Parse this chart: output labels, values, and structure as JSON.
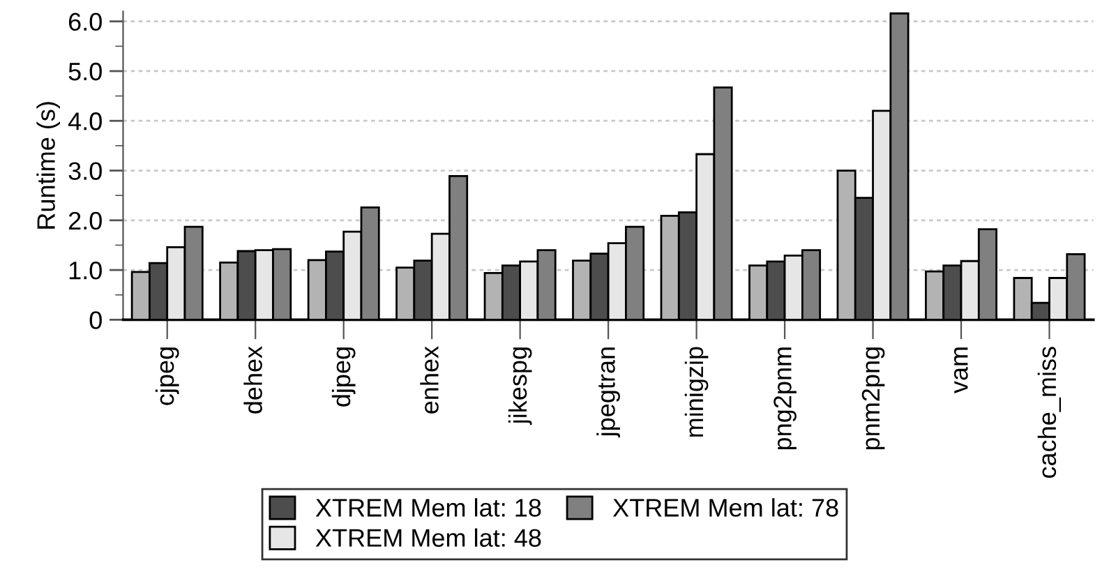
{
  "chart_data": {
    "type": "bar",
    "ylabel": "Runtime (s)",
    "categories": [
      "cjpeg",
      "dehex",
      "djpeg",
      "enhex",
      "jikespg",
      "jpegtran",
      "minigzip",
      "png2pnm",
      "pnm2png",
      "vam",
      "cache_miss"
    ],
    "series": [
      {
        "color": "#b3b3b3",
        "values": [
          0.96,
          1.15,
          1.2,
          1.05,
          0.94,
          1.19,
          2.09,
          1.09,
          3.0,
          0.97,
          0.84
        ]
      },
      {
        "name": "XTREM Mem lat: 18",
        "color": "#4d4d4d",
        "values": [
          1.14,
          1.38,
          1.37,
          1.19,
          1.09,
          1.33,
          2.16,
          1.17,
          2.45,
          1.09,
          0.34
        ]
      },
      {
        "name": "XTREM Mem lat: 48",
        "color": "#e6e6e6",
        "values": [
          1.46,
          1.4,
          1.77,
          1.73,
          1.17,
          1.54,
          3.33,
          1.29,
          4.2,
          1.18,
          0.84
        ]
      },
      {
        "name": "XTREM Mem lat: 78",
        "color": "#808080",
        "values": [
          1.87,
          1.42,
          2.26,
          2.89,
          1.4,
          1.87,
          4.67,
          1.4,
          6.16,
          1.82,
          1.32
        ]
      }
    ],
    "ylim": [
      0,
      6.2
    ],
    "yticks": [
      0,
      {
        "value": 0.5,
        "label": null
      },
      {
        "value": 1,
        "label": "1.0"
      },
      {
        "value": 1.5,
        "label": null
      },
      {
        "value": 2,
        "label": "2.0"
      },
      {
        "value": 2.5,
        "label": null
      },
      {
        "value": 3,
        "label": "3.0"
      },
      {
        "value": 3.5,
        "label": null
      },
      {
        "value": 4,
        "label": "4.0"
      },
      {
        "value": 4.5,
        "label": null
      },
      {
        "value": 5,
        "label": "5.0"
      },
      {
        "value": 5.5,
        "label": null
      },
      {
        "value": 6,
        "label": "6.0"
      }
    ],
    "grid": "y",
    "legend": "bottom"
  }
}
